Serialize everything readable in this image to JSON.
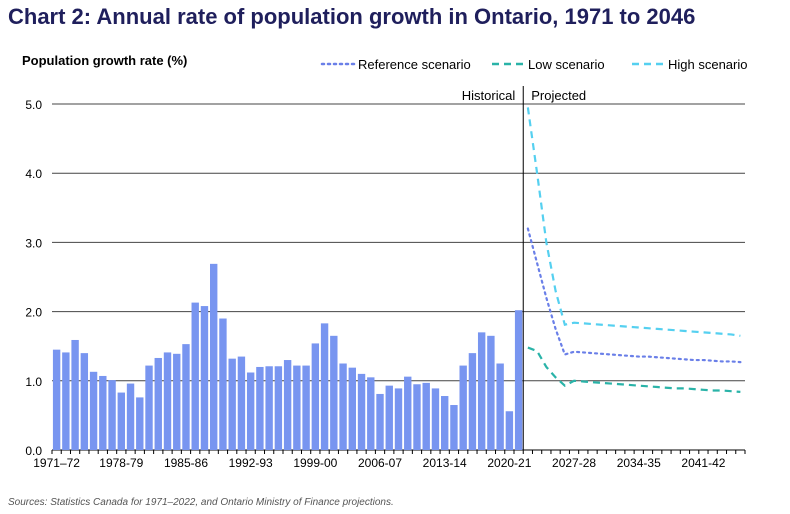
{
  "title": "Chart 2: Annual rate of population growth in Ontario, 1971 to 2046",
  "source": "Sources: Statistics Canada for 1971–2022, and Ontario Ministry of Finance projections.",
  "chart_data": {
    "type": "bar",
    "title": "Chart 2: Annual rate of population growth in Ontario, 1971 to 2046",
    "ylabel": "Population growth rate (%)",
    "ylim": [
      0,
      5
    ],
    "yticks": [
      "0.0",
      "1.0",
      "2.0",
      "3.0",
      "4.0",
      "5.0"
    ],
    "grid": true,
    "legend_position": "top-right",
    "region_labels": {
      "historical": "Historical",
      "projected": "Projected"
    },
    "xtick_labels": [
      "1971–72",
      "1978-79",
      "1985-86",
      "1992-93",
      "1999-00",
      "2006-07",
      "2013-14",
      "2020-21",
      "2027-28",
      "2034-35",
      "2041-42"
    ],
    "historical": {
      "first_year": "1971-72",
      "last_year": "2021-22",
      "color": "#7895f0",
      "values": [
        1.45,
        1.41,
        1.59,
        1.4,
        1.13,
        1.07,
        1.01,
        0.83,
        0.96,
        0.76,
        1.22,
        1.33,
        1.41,
        1.39,
        1.53,
        2.13,
        2.08,
        2.69,
        1.9,
        1.32,
        1.35,
        1.12,
        1.2,
        1.21,
        1.21,
        1.3,
        1.22,
        1.22,
        1.54,
        1.83,
        1.65,
        1.25,
        1.19,
        1.1,
        1.05,
        0.81,
        0.93,
        0.89,
        1.06,
        0.95,
        0.97,
        0.89,
        0.78,
        0.65,
        1.22,
        1.4,
        1.7,
        1.65,
        1.25,
        0.56,
        2.02
      ]
    },
    "series": [
      {
        "name": "Reference scenario",
        "style": "dotted",
        "color": "#6a7fe8",
        "values": [
          3.2,
          2.7,
          2.2,
          1.75,
          1.38,
          1.42,
          1.41,
          1.4,
          1.39,
          1.38,
          1.37,
          1.36,
          1.35,
          1.35,
          1.34,
          1.33,
          1.32,
          1.31,
          1.3,
          1.3,
          1.29,
          1.28,
          1.28,
          1.27
        ]
      },
      {
        "name": "Low scenario",
        "style": "dashed",
        "color": "#2ab3a8",
        "values": [
          1.48,
          1.43,
          1.2,
          1.05,
          0.93,
          1.0,
          0.99,
          0.98,
          0.97,
          0.96,
          0.95,
          0.94,
          0.93,
          0.92,
          0.91,
          0.9,
          0.89,
          0.89,
          0.88,
          0.87,
          0.86,
          0.86,
          0.85,
          0.84
        ]
      },
      {
        "name": "High scenario",
        "style": "dashed",
        "color": "#55d0f0",
        "values": [
          4.95,
          4.0,
          3.0,
          2.3,
          1.81,
          1.84,
          1.83,
          1.82,
          1.81,
          1.8,
          1.79,
          1.78,
          1.77,
          1.76,
          1.75,
          1.74,
          1.73,
          1.72,
          1.71,
          1.7,
          1.69,
          1.68,
          1.67,
          1.65
        ]
      }
    ],
    "projection_years": "2022-23 to 2045-46"
  }
}
